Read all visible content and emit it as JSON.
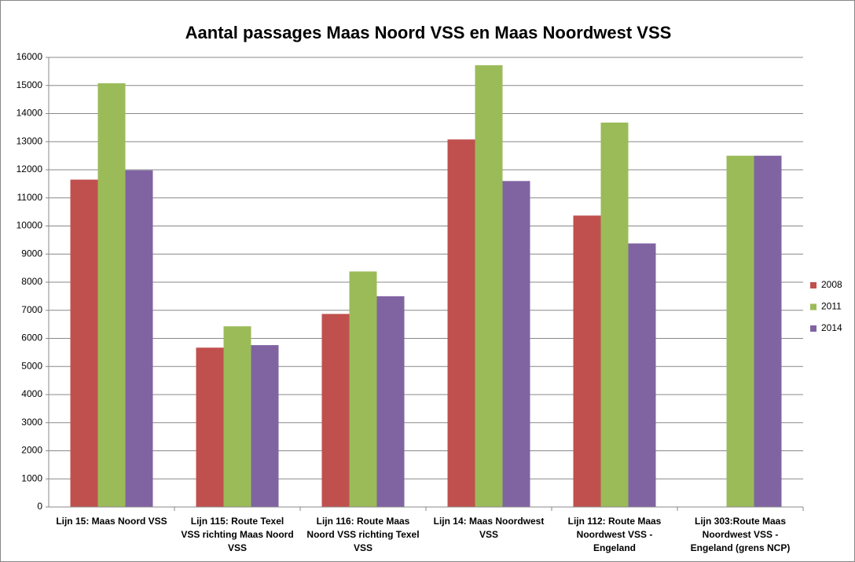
{
  "chart_data": {
    "type": "bar",
    "title": "Aantal passages Maas Noord VSS en Maas Noordwest VSS",
    "categories": [
      "Lijn 15: Maas Noord VSS",
      "Lijn 115: Route Texel VSS richting Maas Noord VSS",
      "Lijn 116: Route Maas Noord VSS richting Texel VSS",
      "Lijn 14: Maas Noordwest VSS",
      "Lijn 112: Route Maas Noordwest VSS - Engeland",
      "Lijn 303:Route Maas Noordwest VSS - Engeland (grens NCP)"
    ],
    "series": [
      {
        "name": "2008",
        "color": "#c0504d",
        "values": [
          11650,
          5670,
          6870,
          13080,
          10370,
          null
        ]
      },
      {
        "name": "2011",
        "color": "#9bbb59",
        "values": [
          15080,
          6430,
          8380,
          15720,
          13680,
          12500
        ]
      },
      {
        "name": "2014",
        "color": "#8064a2",
        "values": [
          11980,
          5760,
          7500,
          11600,
          9380,
          12500
        ]
      }
    ],
    "ylim": [
      0,
      16000
    ],
    "yticks": [
      0,
      1000,
      2000,
      3000,
      4000,
      5000,
      6000,
      7000,
      8000,
      9000,
      10000,
      11000,
      12000,
      13000,
      14000,
      15000,
      16000
    ],
    "grid": true,
    "legend": "right"
  }
}
